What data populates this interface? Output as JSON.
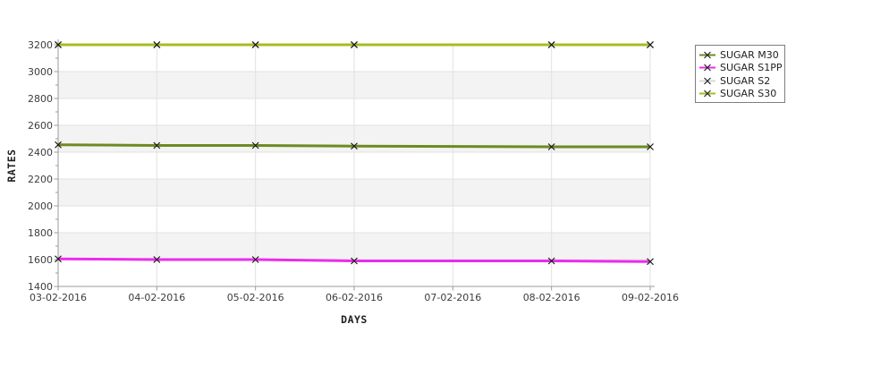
{
  "chart_data": {
    "type": "line",
    "title": "",
    "xlabel": "DAYS",
    "ylabel": "RATES",
    "x_categories": [
      "03-02-2016",
      "04-02-2016",
      "05-02-2016",
      "06-02-2016",
      "07-02-2016",
      "08-02-2016",
      "09-02-2016"
    ],
    "y_ticks": [
      1400,
      1600,
      1800,
      2000,
      2200,
      2400,
      2600,
      2800,
      3000,
      3200
    ],
    "ylim": [
      1400,
      3200
    ],
    "grid": true,
    "marker": "x",
    "legend_position": "right",
    "series": [
      {
        "name": "SUGAR M30",
        "color": "#6d8b22",
        "day_index": [
          0,
          1,
          2,
          3,
          5,
          6
        ],
        "values": [
          2455,
          2450,
          2450,
          2445,
          2440,
          2440
        ]
      },
      {
        "name": "SUGAR S1PP",
        "color": "#ec2bec",
        "day_index": [
          0,
          1,
          2,
          3,
          5,
          6
        ],
        "values": [
          1605,
          1600,
          1600,
          1590,
          1590,
          1585
        ]
      },
      {
        "name": "SUGAR S2",
        "color": "#d8d8d8",
        "day_index": [
          0,
          1,
          2,
          3,
          5,
          6
        ],
        "values": [
          3200,
          3200,
          3200,
          3200,
          3200,
          3200
        ]
      },
      {
        "name": "SUGAR S30",
        "color": "#a7bc1e",
        "day_index": [
          0,
          1,
          2,
          3,
          5,
          6
        ],
        "values": [
          3200,
          3200,
          3200,
          3200,
          3200,
          3200
        ]
      }
    ],
    "style": {
      "band_color": "#f3f3f3",
      "grid_color": "#e2e2e2",
      "axis_color": "#9b9b9b",
      "marker_color": "#1a1a1a",
      "tick_text_color": "#3c3c3c"
    }
  }
}
